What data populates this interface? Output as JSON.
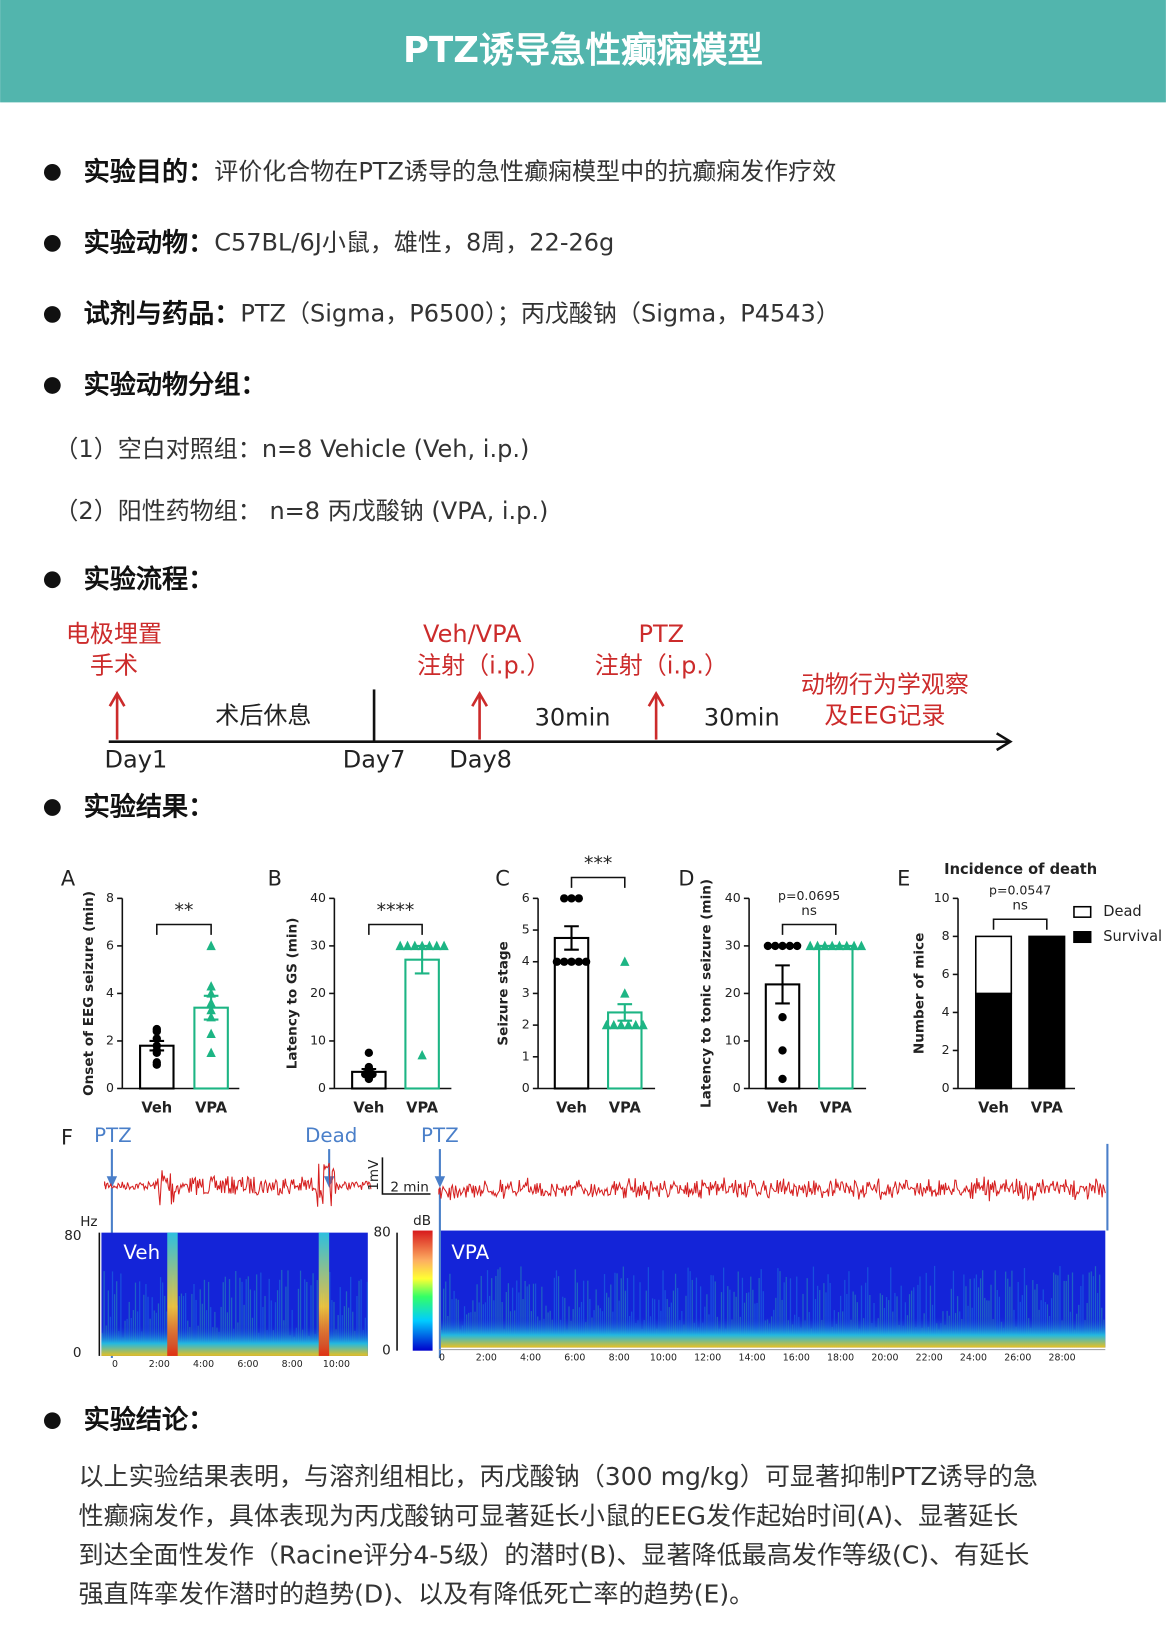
{
  "header": {
    "title": "PTZ诱导急性癫痫模型"
  },
  "sections": [
    {
      "label": "实验目的：",
      "text": "评价化合物在PTZ诱导的急性癫痫模型中的抗癫痫发作疗效"
    },
    {
      "label": "实验动物：",
      "text": "C57BL/6J小鼠，雄性，8周，22-26g"
    },
    {
      "label": "试剂与药品：",
      "text": "PTZ（Sigma，P6500）；丙戊酸钠（Sigma，P4543）"
    },
    {
      "label": "实验动物分组：",
      "items": [
        "（1）空白对照组：n=8 Vehicle (Veh, i.p.)",
        "（2）阳性药物组： n=8 丙戊酸钠 (VPA, i.p.)"
      ]
    },
    {
      "label": "实验流程："
    },
    {
      "label": "实验结果："
    },
    {
      "label": "实验结论：",
      "lines": [
        "以上实验结果表明，与溶剂组相比，丙戊酸钠（300 mg/kg）可显著抑制PTZ诱导的急",
        "性癫痫发作，具体表现为丙戊酸钠可显著延长小鼠的EEG发作起始时间(A)、显著延长",
        "到达全面性发作（Racine评分4-5级）的潜时(B)、显著降低最高发作等级(C)、有延长",
        "强直阵挛发作潜时的趋势(D)、以及有降低死亡率的趋势(E)。"
      ]
    }
  ],
  "timeline": {
    "events": [
      [
        "电极埋置",
        "手术"
      ],
      [
        "Veh/VPA",
        "注射（i.p.）"
      ],
      [
        "PTZ",
        "注射（i.p.）"
      ],
      [
        "动物行为学观察",
        "及EEG记录"
      ]
    ],
    "intervals": [
      "术后休息",
      "30min",
      "30min"
    ],
    "days": [
      "Day1",
      "Day7",
      "Day8"
    ]
  },
  "chart_data": [
    {
      "type": "bar",
      "panel": "A",
      "ylabel": "Onset of EEG seizure (min)",
      "categories": [
        "Veh",
        "VPA"
      ],
      "values": [
        1.8,
        3.4
      ],
      "errors": [
        0.2,
        0.5
      ],
      "points": [
        [
          2.5,
          2.4,
          2.1,
          1.8,
          1.6,
          1.5,
          1.1,
          1.0
        ],
        [
          6.0,
          4.3,
          4.0,
          3.6,
          3.3,
          3.0,
          2.3,
          1.5
        ]
      ],
      "colors": [
        "#000000",
        "#1db584"
      ],
      "markers": [
        "circle",
        "triangle"
      ],
      "ylim": [
        0,
        8
      ],
      "yticks": [
        0,
        2,
        4,
        6,
        8
      ],
      "significance": "**"
    },
    {
      "type": "bar",
      "panel": "B",
      "ylabel": "Latency to GS (min)",
      "categories": [
        "Veh",
        "VPA"
      ],
      "values": [
        3.5,
        27.1
      ],
      "errors": [
        0.6,
        2.9
      ],
      "points": [
        [
          7.5,
          4.5,
          4,
          3.5,
          3,
          3,
          2.5,
          2
        ],
        [
          30,
          30,
          30,
          30,
          30,
          30,
          30,
          7
        ]
      ],
      "colors": [
        "#000000",
        "#1db584"
      ],
      "markers": [
        "circle",
        "triangle"
      ],
      "ylim": [
        0,
        40
      ],
      "yticks": [
        0,
        10,
        20,
        30,
        40
      ],
      "significance": "****"
    },
    {
      "type": "bar",
      "panel": "C",
      "ylabel": "Seizure stage",
      "categories": [
        "Veh",
        "VPA"
      ],
      "values": [
        4.75,
        2.4
      ],
      "errors": [
        0.37,
        0.26
      ],
      "points": [
        [
          6,
          6,
          6,
          4,
          4,
          4,
          4,
          4
        ],
        [
          4,
          3,
          2,
          2,
          2,
          2,
          2,
          2
        ]
      ],
      "colors": [
        "#000000",
        "#1db584"
      ],
      "markers": [
        "circle",
        "triangle"
      ],
      "ylim": [
        0,
        6
      ],
      "yticks": [
        0,
        1,
        2,
        3,
        4,
        5,
        6
      ],
      "significance": "***"
    },
    {
      "type": "bar",
      "panel": "D",
      "ylabel": "Latency to tonic seizure (min)",
      "categories": [
        "Veh",
        "VPA"
      ],
      "values": [
        21.9,
        30
      ],
      "errors": [
        4,
        0
      ],
      "points": [
        [
          30,
          30,
          30,
          30,
          30,
          15,
          8,
          2
        ],
        [
          30,
          30,
          30,
          30,
          30,
          30,
          30,
          30
        ]
      ],
      "colors": [
        "#000000",
        "#1db584"
      ],
      "markers": [
        "circle",
        "triangle"
      ],
      "ylim": [
        0,
        40
      ],
      "yticks": [
        0,
        10,
        20,
        30,
        40
      ],
      "significance": "ns",
      "p_value": "p=0.0695"
    },
    {
      "type": "stacked_bar",
      "panel": "E",
      "title": "Incidence of death",
      "ylabel": "Number of mice",
      "categories": [
        "Veh",
        "VPA"
      ],
      "series": [
        {
          "name": "Survival",
          "color": "#000000",
          "values": [
            5,
            8
          ]
        },
        {
          "name": "Dead",
          "color": "#ffffff",
          "values": [
            3,
            0
          ]
        }
      ],
      "ylim": [
        0,
        10
      ],
      "yticks": [
        0,
        2,
        4,
        6,
        8,
        10
      ],
      "significance": "ns",
      "p_value": "p=0.0547"
    }
  ],
  "eeg": {
    "panel": "F",
    "markers": [
      "PTZ",
      "Dead",
      "PTZ"
    ],
    "scale": [
      "1mV",
      "2 min"
    ],
    "freq_unit": "Hz",
    "freq_ticks": [
      "80",
      "0"
    ],
    "db_unit": "dB",
    "db_ticks": [
      "80",
      "0"
    ],
    "groups": [
      "Veh",
      "VPA"
    ],
    "time_ticks_left": [
      "0",
      "2:00",
      "4:00",
      "6:00",
      "8:00",
      "10:00"
    ],
    "time_ticks_right": [
      "0",
      "2:00",
      "4:00",
      "6:00",
      "8:00",
      "10:00",
      "12:00",
      "14:00",
      "16:00",
      "18:00",
      "20:00",
      "22:00",
      "24:00",
      "26:00",
      "28:00"
    ]
  }
}
